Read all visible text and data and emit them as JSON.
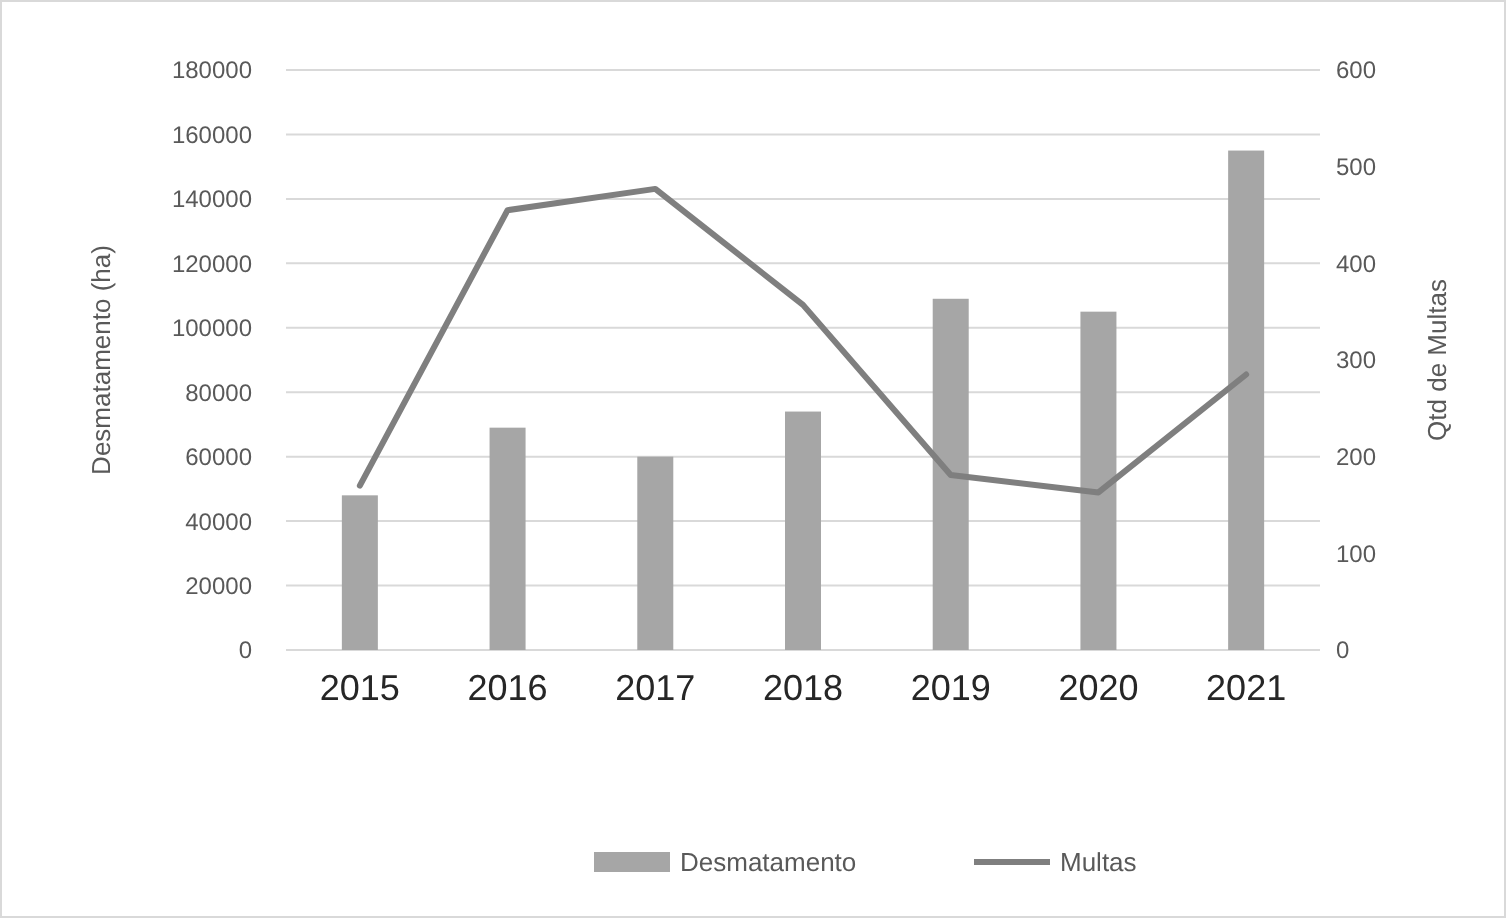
{
  "chart_data": {
    "type": "bar",
    "categories": [
      "2015",
      "2016",
      "2017",
      "2018",
      "2019",
      "2020",
      "2021"
    ],
    "series": [
      {
        "name": "Desmatamento",
        "color": "#a6a6a6",
        "values": [
          48000,
          69000,
          60000,
          74000,
          109000,
          105000,
          155000
        ]
      },
      {
        "name": "Multas",
        "type": "line",
        "axis": "y2",
        "color": "#7f7f7f",
        "values": [
          170,
          455,
          477,
          357,
          181,
          163,
          285
        ]
      }
    ],
    "ylabel": "Desmatamento (ha)",
    "y2label": "Qtd de Multas",
    "ylim": [
      0,
      180000
    ],
    "yticks": [
      0,
      20000,
      40000,
      60000,
      80000,
      100000,
      120000,
      140000,
      160000,
      180000
    ],
    "y2lim": [
      0,
      600
    ],
    "y2ticks": [
      0,
      100,
      200,
      300,
      400,
      500,
      600
    ],
    "grid": "y",
    "legend": "bottom"
  }
}
